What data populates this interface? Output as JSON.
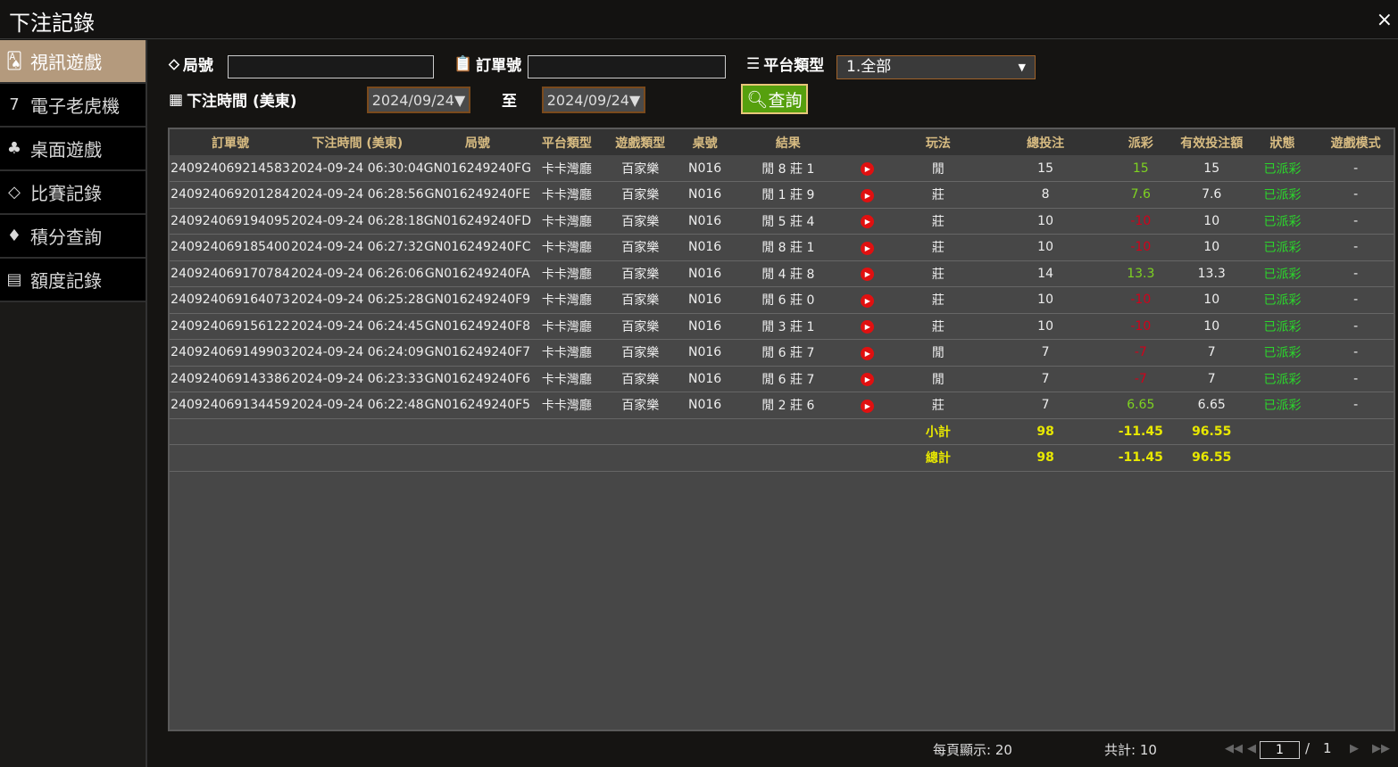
{
  "window": {
    "title": "下注記錄",
    "close": "×"
  },
  "sidebar": {
    "items": [
      {
        "label": "視訊遊戲",
        "icon": "cards-icon",
        "glyph": "🂡",
        "active": true
      },
      {
        "label": "電子老虎機",
        "icon": "slot-777-icon",
        "glyph": "7",
        "active": false
      },
      {
        "label": "桌面遊戲",
        "icon": "chips-icon",
        "glyph": "♣",
        "active": false
      },
      {
        "label": "比賽記錄",
        "icon": "ticket-icon",
        "glyph": "◇",
        "active": false
      },
      {
        "label": "積分查詢",
        "icon": "diamond-icon",
        "glyph": "♦",
        "active": false
      },
      {
        "label": "額度記錄",
        "icon": "document-icon",
        "glyph": "▤",
        "active": false
      }
    ]
  },
  "filters": {
    "round_label": "局號",
    "round_value": "",
    "order_label": "訂單號",
    "order_value": "",
    "platform_label": "平台類型",
    "platform_value": "1.全部",
    "time_label": "下注時間 (美東)",
    "date_from": "2024/09/24▼",
    "to_label": "至",
    "date_to": "2024/09/24▼",
    "query_label": "查詢"
  },
  "table": {
    "headers": [
      "訂單號",
      "下注時間 (美東)",
      "局號",
      "平台類型",
      "遊戲類型",
      "桌號",
      "結果",
      "",
      "玩法",
      "總投注",
      "派彩",
      "有效投注額",
      "狀態",
      "遊戲模式"
    ],
    "rows": [
      [
        "240924069214583",
        "2024-09-24 06:30:04",
        "GN016249240FG",
        "卡卡灣廳",
        "百家樂",
        "N016",
        "閒 8 莊 1",
        "閒",
        "15",
        "15",
        "15",
        "已派彩",
        "-"
      ],
      [
        "240924069201284",
        "2024-09-24 06:28:56",
        "GN016249240FE",
        "卡卡灣廳",
        "百家樂",
        "N016",
        "閒 1 莊 9",
        "莊",
        "8",
        "7.6",
        "7.6",
        "已派彩",
        "-"
      ],
      [
        "240924069194095",
        "2024-09-24 06:28:18",
        "GN016249240FD",
        "卡卡灣廳",
        "百家樂",
        "N016",
        "閒 5 莊 4",
        "莊",
        "10",
        "-10",
        "10",
        "已派彩",
        "-"
      ],
      [
        "240924069185400",
        "2024-09-24 06:27:32",
        "GN016249240FC",
        "卡卡灣廳",
        "百家樂",
        "N016",
        "閒 8 莊 1",
        "莊",
        "10",
        "-10",
        "10",
        "已派彩",
        "-"
      ],
      [
        "240924069170784",
        "2024-09-24 06:26:06",
        "GN016249240FA",
        "卡卡灣廳",
        "百家樂",
        "N016",
        "閒 4 莊 8",
        "莊",
        "14",
        "13.3",
        "13.3",
        "已派彩",
        "-"
      ],
      [
        "240924069164073",
        "2024-09-24 06:25:28",
        "GN016249240F9",
        "卡卡灣廳",
        "百家樂",
        "N016",
        "閒 6 莊 0",
        "莊",
        "10",
        "-10",
        "10",
        "已派彩",
        "-"
      ],
      [
        "240924069156122",
        "2024-09-24 06:24:45",
        "GN016249240F8",
        "卡卡灣廳",
        "百家樂",
        "N016",
        "閒 3 莊 1",
        "莊",
        "10",
        "-10",
        "10",
        "已派彩",
        "-"
      ],
      [
        "240924069149903",
        "2024-09-24 06:24:09",
        "GN016249240F7",
        "卡卡灣廳",
        "百家樂",
        "N016",
        "閒 6 莊 7",
        "閒",
        "7",
        "-7",
        "7",
        "已派彩",
        "-"
      ],
      [
        "240924069143386",
        "2024-09-24 06:23:33",
        "GN016249240F6",
        "卡卡灣廳",
        "百家樂",
        "N016",
        "閒 6 莊 7",
        "閒",
        "7",
        "-7",
        "7",
        "已派彩",
        "-"
      ],
      [
        "240924069134459",
        "2024-09-24 06:22:48",
        "GN016249240F5",
        "卡卡灣廳",
        "百家樂",
        "N016",
        "閒 2 莊 6",
        "莊",
        "7",
        "6.65",
        "6.65",
        "已派彩",
        "-"
      ]
    ],
    "subtotal": {
      "label": "小計",
      "total": "98",
      "payout": "-11.45",
      "valid": "96.55"
    },
    "grandtotal": {
      "label": "總計",
      "total": "98",
      "payout": "-11.45",
      "valid": "96.55"
    }
  },
  "footer": {
    "per_page": "每頁顯示: 20",
    "total": "共計: 10",
    "page": "1",
    "separator": "/",
    "pages": "1"
  },
  "colors": {
    "positive": "#7ed321",
    "negative": "#d0021b",
    "status": "#2bd62b",
    "header_text": "#d8bc82",
    "active_tab": "#b49a7d",
    "query_button": "#56a00e"
  }
}
